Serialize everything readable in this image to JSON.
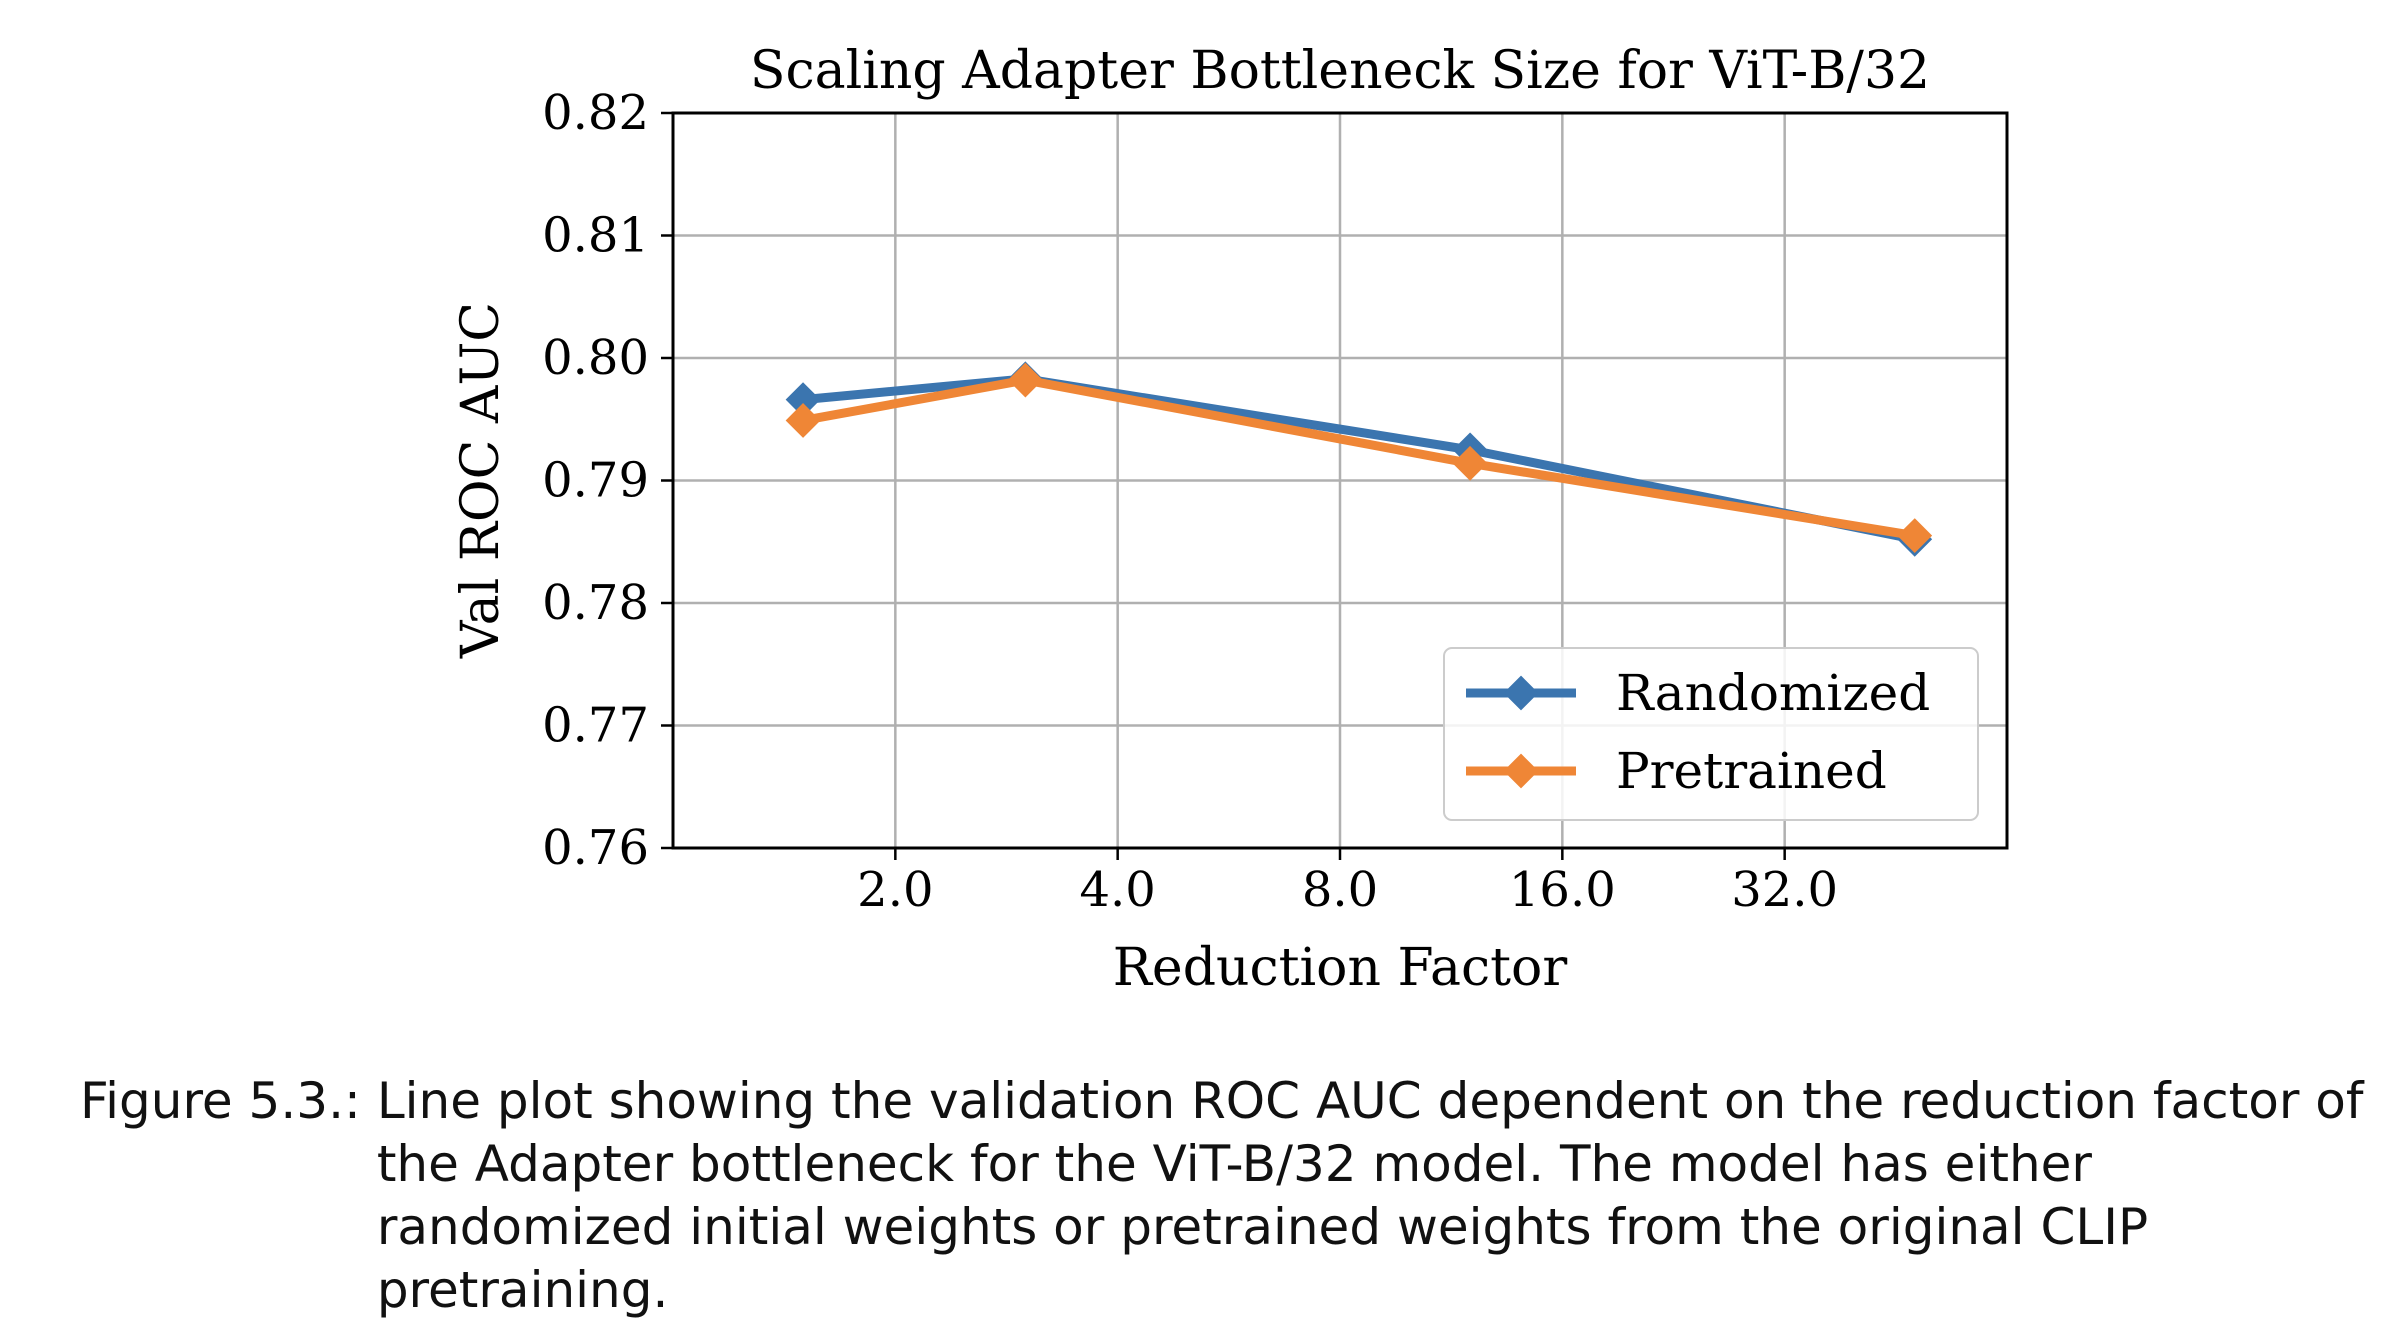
{
  "chart_data": {
    "type": "line",
    "title": "Scaling Adapter Bottleneck Size for ViT-B/32",
    "xlabel": "Reduction Factor",
    "ylabel": "Val ROC AUC",
    "x_scale": "log2",
    "x_ticks": [
      2.0,
      4.0,
      8.0,
      16.0,
      32.0
    ],
    "x_tick_labels": [
      "2.0",
      "4.0",
      "8.0",
      "16.0",
      "32.0"
    ],
    "xlim": [
      1.0,
      64.0
    ],
    "ylim": [
      0.76,
      0.82
    ],
    "y_ticks": [
      0.76,
      0.77,
      0.78,
      0.79,
      0.8,
      0.81,
      0.82
    ],
    "y_tick_labels": [
      "0.76",
      "0.77",
      "0.78",
      "0.79",
      "0.80",
      "0.81",
      "0.82"
    ],
    "grid": true,
    "legend_position": "bottom-right",
    "x": [
      1.5,
      3.0,
      12.0,
      48.0
    ],
    "series": [
      {
        "name": "Randomized",
        "color": "#3b75af",
        "marker": "diamond",
        "values": [
          0.7966,
          0.7983,
          0.7925,
          0.7852
        ]
      },
      {
        "name": "Pretrained",
        "color": "#ef8636",
        "marker": "diamond",
        "values": [
          0.7949,
          0.7982,
          0.7914,
          0.7855
        ]
      }
    ]
  },
  "caption": {
    "label": "Figure 5.3.:",
    "text": "Line plot showing the validation ROC AUC dependent on the reduction factor of the Adapter bottleneck for the ViT-B/32 model. The model has either randomized initial weights or pretrained weights from the original CLIP pretraining."
  }
}
